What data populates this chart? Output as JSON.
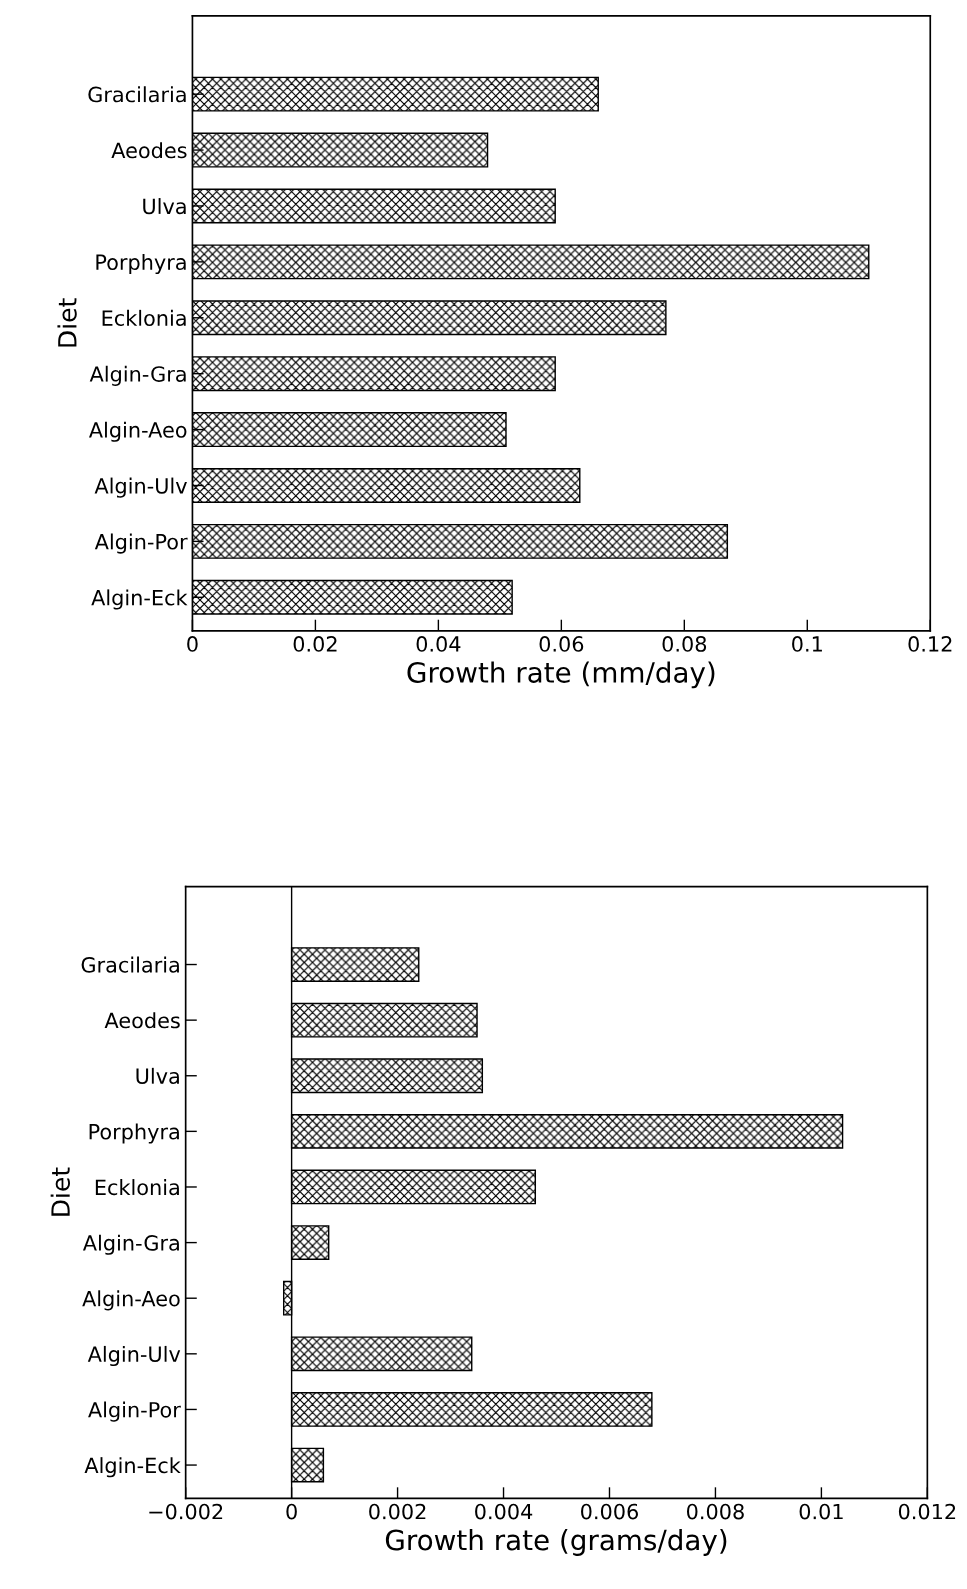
{
  "chart_data": [
    {
      "type": "bar",
      "orientation": "horizontal",
      "xlabel": "Growth rate (mm/day)",
      "ylabel": "Diet",
      "categories": [
        "Gracilaria",
        "Aeodes",
        "Ulva",
        "Porphyra",
        "Ecklonia",
        "Algin-Gra",
        "Algin-Aeo",
        "Algin-Ulv",
        "Algin-Por",
        "Algin-Eck"
      ],
      "values": [
        0.066,
        0.048,
        0.059,
        0.11,
        0.077,
        0.059,
        0.051,
        0.063,
        0.087,
        0.052
      ],
      "color": "#000000",
      "xlim": [
        0,
        0.12
      ],
      "xticks": [
        0,
        0.02,
        0.04,
        0.06,
        0.08,
        0.1,
        0.12
      ],
      "grid": false
    },
    {
      "type": "bar",
      "orientation": "horizontal",
      "xlabel": "Growth rate (grams/day)",
      "ylabel": "Diet",
      "categories": [
        "Gracilaria",
        "Aeodes",
        "Ulva",
        "Porphyra",
        "Ecklonia",
        "Algin-Gra",
        "Algin-Aeo",
        "Algin-Ulv",
        "Algin-Por",
        "Algin-Eck"
      ],
      "values": [
        0.0024,
        0.0035,
        0.0036,
        0.0104,
        0.0046,
        0.0007,
        -0.00015,
        0.0034,
        0.0068,
        0.0006
      ],
      "color": "#000000",
      "xlim": [
        -0.002,
        0.012
      ],
      "xticks": [
        {
          "value": -0.002,
          "label": "−0.002"
        },
        0,
        0.002,
        0.004,
        0.006,
        0.008,
        0.01,
        0.012
      ],
      "grid": false,
      "ref_lines": [
        {
          "axis": "x",
          "value": 0,
          "label": null
        }
      ]
    }
  ]
}
